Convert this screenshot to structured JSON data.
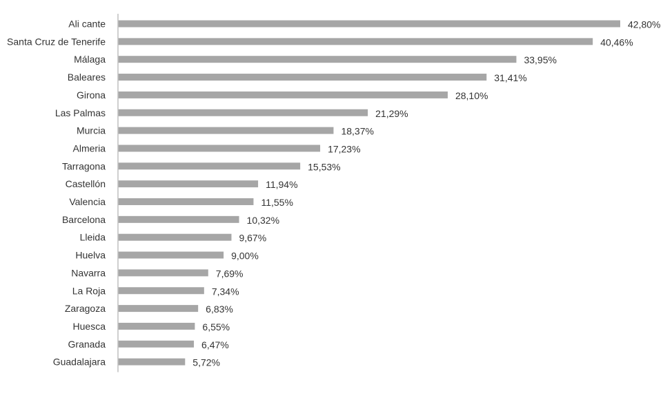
{
  "chart_data": {
    "type": "bar",
    "orientation": "horizontal",
    "categories": [
      "Ali cante",
      "Santa Cruz de Tenerife",
      "Málaga",
      "Baleares",
      "Girona",
      "Las Palmas",
      "Murcia",
      "Almeria",
      "Tarragona",
      "Castellón",
      "Valencia",
      "Barcelona",
      "Lleida",
      "Huelva",
      "Navarra",
      "La Roja",
      "Zaragoza",
      "Huesca",
      "Granada",
      "Guadalajara"
    ],
    "values": [
      42.8,
      40.46,
      33.95,
      31.41,
      28.1,
      21.29,
      18.37,
      17.23,
      15.53,
      11.94,
      11.55,
      10.32,
      9.67,
      9.0,
      7.69,
      7.34,
      6.83,
      6.55,
      6.47,
      5.72
    ],
    "value_labels": [
      "42,80%",
      "40,46%",
      "33,95%",
      "31,41%",
      "28,10%",
      "21,29%",
      "18,37%",
      "17,23%",
      "15,53%",
      "11,94%",
      "11,55%",
      "10,32%",
      "9,67%",
      "9,00%",
      "7,69%",
      "7,34%",
      "6,83%",
      "6,55%",
      "6,47%",
      "5,72%"
    ],
    "title": "",
    "xlabel": "",
    "ylabel": "",
    "xlim": [
      0,
      42.8
    ],
    "grid": false,
    "legend": "none",
    "colors": {
      "bar": "#a6a6a6",
      "axis": "#bfbfbf",
      "text": "#333333"
    }
  }
}
